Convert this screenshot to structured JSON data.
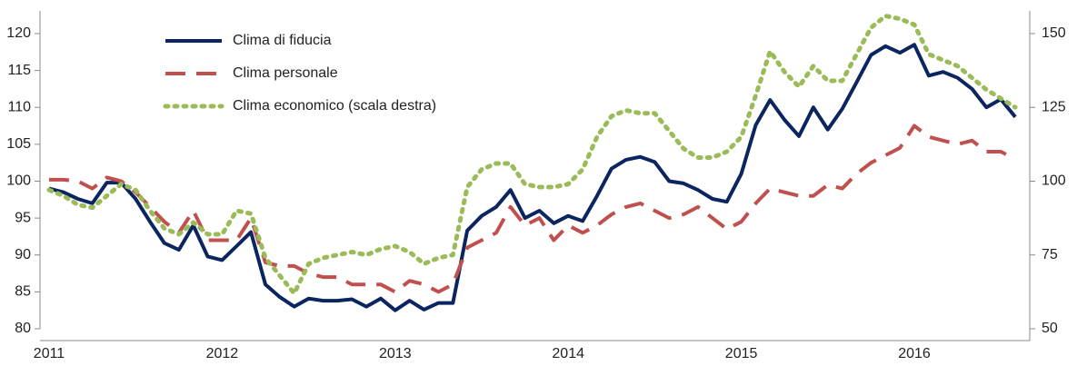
{
  "chart_data": {
    "type": "line",
    "categories": [
      "2011",
      null,
      null,
      null,
      null,
      null,
      null,
      null,
      null,
      null,
      null,
      null,
      "2012",
      null,
      null,
      null,
      null,
      null,
      null,
      null,
      null,
      null,
      null,
      null,
      "2013",
      null,
      null,
      null,
      null,
      null,
      null,
      null,
      null,
      null,
      null,
      null,
      "2014",
      null,
      null,
      null,
      null,
      null,
      null,
      null,
      null,
      null,
      null,
      null,
      "2015",
      null,
      null,
      null,
      null,
      null,
      null,
      null,
      null,
      null,
      null,
      null,
      "2016",
      null,
      null,
      null,
      null,
      null,
      null,
      null
    ],
    "series": [
      {
        "name": "Clima di fiducia",
        "color": "#0b2560",
        "dash": "solid",
        "values": [
          99.0,
          98.5,
          97.6,
          97.0,
          99.8,
          99.8,
          97.6,
          94.5,
          91.6,
          90.7,
          94.0,
          89.8,
          89.3,
          91.2,
          93.1,
          86.0,
          84.3,
          83.0,
          84.1,
          83.8,
          83.8,
          84.0,
          83.0,
          84.1,
          82.5,
          83.8,
          82.6,
          83.5,
          83.5,
          93.3,
          95.3,
          96.5,
          98.8,
          95.0,
          96.0,
          94.3,
          95.3,
          94.6,
          98.0,
          101.7,
          102.9,
          103.3,
          102.6,
          100.0,
          99.7,
          98.8,
          97.6,
          97.2,
          101.0,
          107.6,
          111.0,
          108.3,
          106.1,
          110.0,
          107.0,
          109.8,
          113.4,
          117.1,
          118.3,
          117.4,
          118.5,
          114.3,
          114.8,
          114.0,
          112.5,
          110.0,
          111.1,
          108.7
        ]
      },
      {
        "name": "Clima personale",
        "color": "#c0504d",
        "dash": "dashed",
        "values": [
          100.2,
          100.2,
          100.0,
          99.0,
          100.5,
          100.0,
          98.5,
          96.5,
          94.5,
          93.0,
          96.0,
          92.0,
          92.0,
          92.0,
          95.0,
          89.0,
          88.5,
          88.5,
          87.5,
          87.0,
          87.0,
          86.0,
          86.0,
          86.0,
          85.0,
          86.5,
          86.0,
          85.0,
          86.0,
          91.0,
          92.0,
          93.0,
          96.5,
          94.0,
          95.0,
          92.0,
          94.0,
          93.0,
          94.0,
          95.5,
          96.5,
          97.0,
          96.0,
          95.0,
          95.5,
          96.5,
          95.0,
          93.5,
          94.5,
          97.0,
          99.0,
          98.5,
          98.0,
          98.0,
          99.5,
          99.0,
          101.0,
          102.5,
          103.5,
          104.5,
          107.5,
          106.0,
          105.5,
          105.0,
          105.5,
          104.0,
          104.0,
          103.0
        ]
      },
      {
        "name": "Clima economico (scala destra)",
        "color": "#9bbb59",
        "dash": "dotted",
        "axis": "y2",
        "values": [
          97,
          95,
          92,
          91,
          95,
          99,
          97,
          90,
          84,
          82,
          86,
          82,
          82,
          90,
          89,
          74,
          68,
          62,
          72,
          74,
          75,
          76,
          75,
          77,
          78,
          76,
          72,
          74,
          75,
          98,
          104,
          106,
          106,
          99,
          98,
          98,
          99,
          104,
          115,
          122,
          124,
          123,
          123,
          117,
          111,
          108,
          108,
          110,
          115,
          129,
          144,
          137,
          132,
          139,
          134,
          134,
          143,
          152,
          156,
          155,
          153,
          143,
          141,
          139,
          135,
          131,
          128,
          125
        ]
      }
    ],
    "ylim": [
      80,
      123
    ],
    "yticks": [
      80,
      85,
      90,
      95,
      100,
      105,
      110,
      115,
      120
    ],
    "y2lim": [
      50,
      157.5
    ],
    "y2ticks": [
      50,
      75,
      100,
      125,
      150
    ],
    "legend": "upper left"
  }
}
